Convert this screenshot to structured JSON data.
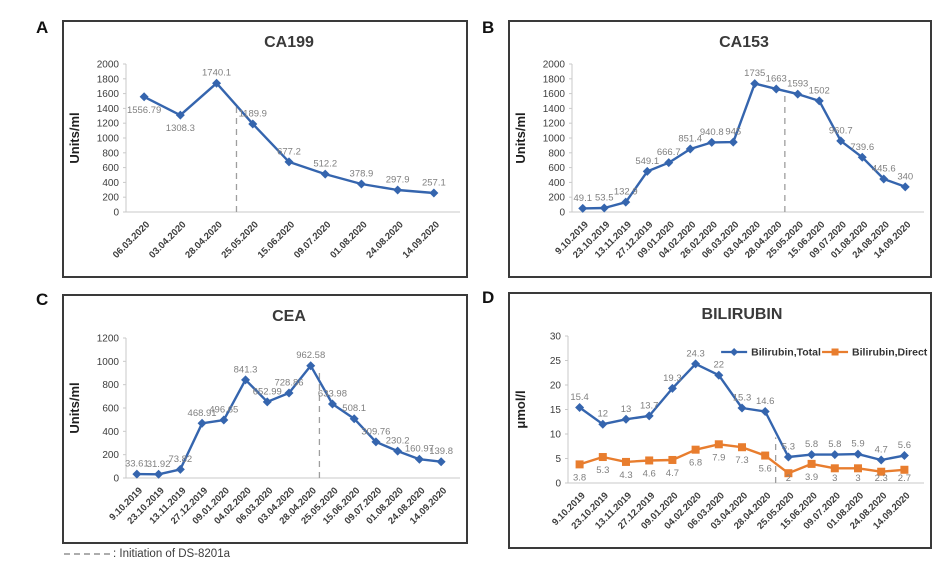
{
  "figure": {
    "footnote": {
      "text": ": Initiation of DS-8201a"
    }
  },
  "colors": {
    "blue": "#3565AE",
    "orange": "#E87D2E",
    "data_label": "#808080",
    "axis_text": "#3D3D3D",
    "axis_line": "#C9C9C9",
    "dashed_line": "#9E9E9E",
    "panel_border": "#3A3A3A",
    "title_text": "#3A3A3A"
  },
  "chart_data": [
    {
      "panel": "A",
      "type": "line",
      "title": "CA199",
      "xlabel": "",
      "ylabel": "Units/ml",
      "ylim": [
        0,
        2000
      ],
      "ytick_step": 200,
      "grid": false,
      "legend": false,
      "categories": [
        "06.03.2020",
        "03.04.2020",
        "28.04.2020",
        "25.05.2020",
        "15.06.2020",
        "09.07.2020",
        "01.08.2020",
        "24.08.2020",
        "14.09.2020"
      ],
      "series": [
        {
          "name": "CA199",
          "color": "blue",
          "marker": "diamond",
          "values": [
            1556.79,
            1308.3,
            1740.1,
            1189.9,
            677.2,
            512.2,
            378.9,
            297.9,
            257.1
          ],
          "label_pos": [
            "below",
            "below",
            "above",
            "above",
            "above",
            "above",
            "above",
            "above",
            "above"
          ]
        }
      ],
      "dashed_line": {
        "x_index": 2.55,
        "top_frac": 0.74
      }
    },
    {
      "panel": "B",
      "type": "line",
      "title": "CA153",
      "xlabel": "",
      "ylabel": "Units/ml",
      "ylim": [
        0,
        2000
      ],
      "ytick_step": 200,
      "grid": false,
      "legend": false,
      "categories": [
        "9.10.2019",
        "23.10.2019",
        "13.11.2019",
        "27.12.2019",
        "09.01.2020",
        "04.02.2020",
        "26.02.2020",
        "06.03.2020",
        "03.04.2020",
        "28.04.2020",
        "25.05.2020",
        "15.06.2020",
        "09.07.2020",
        "01.08.2020",
        "24.08.2020",
        "14.09.2020"
      ],
      "series": [
        {
          "name": "CA153",
          "color": "blue",
          "marker": "diamond",
          "values": [
            49.1,
            53.5,
            132.9,
            549.1,
            666.7,
            851.4,
            940.8,
            945,
            1735,
            1663,
            1593,
            1502,
            960.7,
            739.6,
            445.6,
            340
          ]
        }
      ],
      "dashed_line": {
        "x_index": 9.4,
        "top_frac": 0.82
      }
    },
    {
      "panel": "C",
      "type": "line",
      "title": "CEA",
      "xlabel": "",
      "ylabel": "Units/ml",
      "ylim": [
        0,
        1200
      ],
      "ytick_step": 200,
      "grid": false,
      "legend": false,
      "categories": [
        "9.10.2019",
        "23.10.2019",
        "13.11.2019",
        "27.12.2019",
        "09.01.2020",
        "04.02.2020",
        "06.03.2020",
        "03.04.2020",
        "28.04.2020",
        "25.05.2020",
        "15.06.2020",
        "09.07.2020",
        "01.08.2020",
        "24.08.2020",
        "14.09.2020"
      ],
      "series": [
        {
          "name": "CEA",
          "color": "blue",
          "marker": "diamond",
          "values": [
            33.61,
            31.92,
            73.82,
            468.91,
            496.65,
            841.3,
            652.99,
            728.86,
            962.58,
            633.98,
            508.1,
            309.76,
            230.2,
            160.97,
            139.8
          ]
        }
      ],
      "dashed_line": {
        "x_index": 8.4,
        "top_frac": 0.76
      }
    },
    {
      "panel": "D",
      "type": "line",
      "title": "BILIRUBIN",
      "xlabel": "",
      "ylabel": "μmol/l",
      "ylim": [
        0,
        30
      ],
      "ytick_step": 5,
      "grid": false,
      "legend": true,
      "legend_position": "top",
      "categories": [
        "9.10.2019",
        "23.10.2019",
        "13.11.2019",
        "27.12.2019",
        "09.01.2020",
        "04.02.2020",
        "06.03.2020",
        "03.04.2020",
        "28.04.2020",
        "25.05.2020",
        "15.06.2020",
        "09.07.2020",
        "01.08.2020",
        "24.08.2020",
        "14.09.2020"
      ],
      "series": [
        {
          "name": "Bilirubin,Total",
          "color": "blue",
          "marker": "diamond",
          "label_side": "above",
          "values": [
            15.4,
            12,
            13,
            13.7,
            19.3,
            24.3,
            22,
            15.3,
            14.6,
            5.3,
            5.8,
            5.8,
            5.9,
            4.7,
            5.6
          ]
        },
        {
          "name": "Bilirubin,Direct",
          "color": "orange",
          "marker": "square",
          "label_side": "below",
          "values": [
            3.8,
            5.3,
            4.3,
            4.6,
            4.7,
            6.8,
            7.9,
            7.3,
            5.6,
            2,
            3.9,
            3,
            3,
            2.3,
            2.7
          ]
        }
      ],
      "dashed_line": {
        "x_index": 8.45,
        "top_frac": 0.31
      }
    }
  ]
}
